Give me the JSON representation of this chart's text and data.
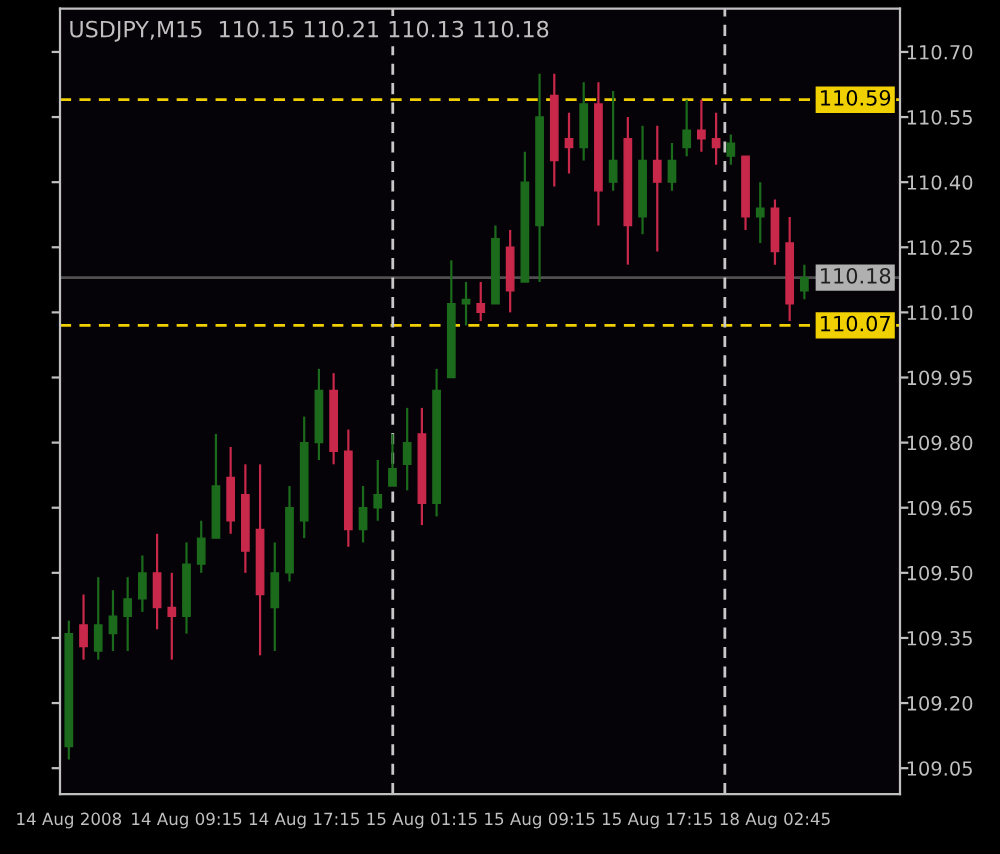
{
  "chart_data": {
    "type": "candlestick",
    "title": "USDJPY,M15  110.15 110.21 110.13 110.18",
    "categories": [
      "14 Aug 2008",
      null,
      null,
      null,
      null,
      null,
      null,
      null,
      "14 Aug 09:15",
      null,
      null,
      null,
      null,
      null,
      null,
      null,
      "14 Aug 17:15",
      null,
      null,
      null,
      null,
      null,
      null,
      null,
      "15 Aug 01:15",
      null,
      null,
      null,
      null,
      null,
      null,
      null,
      "15 Aug 09:15",
      null,
      null,
      null,
      null,
      null,
      null,
      null,
      "15 Aug 17:15",
      null,
      null,
      null,
      null,
      null,
      null,
      null,
      "18 Aug 02:45",
      null,
      null
    ],
    "ohlc": [
      [
        109.1,
        109.39,
        109.07,
        109.36
      ],
      [
        109.38,
        109.45,
        109.3,
        109.33
      ],
      [
        109.32,
        109.49,
        109.3,
        109.38
      ],
      [
        109.36,
        109.46,
        109.32,
        109.4
      ],
      [
        109.4,
        109.49,
        109.32,
        109.44
      ],
      [
        109.44,
        109.54,
        109.41,
        109.5
      ],
      [
        109.5,
        109.59,
        109.37,
        109.42
      ],
      [
        109.42,
        109.5,
        109.3,
        109.4
      ],
      [
        109.4,
        109.57,
        109.36,
        109.52
      ],
      [
        109.52,
        109.62,
        109.5,
        109.58
      ],
      [
        109.58,
        109.82,
        109.58,
        109.7
      ],
      [
        109.72,
        109.79,
        109.59,
        109.62
      ],
      [
        109.68,
        109.75,
        109.5,
        109.55
      ],
      [
        109.6,
        109.75,
        109.31,
        109.45
      ],
      [
        109.42,
        109.57,
        109.32,
        109.5
      ],
      [
        109.5,
        109.7,
        109.48,
        109.65
      ],
      [
        109.62,
        109.86,
        109.58,
        109.8
      ],
      [
        109.8,
        109.97,
        109.76,
        109.92
      ],
      [
        109.92,
        109.96,
        109.75,
        109.78
      ],
      [
        109.78,
        109.83,
        109.56,
        109.6
      ],
      [
        109.6,
        109.7,
        109.57,
        109.65
      ],
      [
        109.65,
        109.76,
        109.62,
        109.68
      ],
      [
        109.7,
        109.82,
        109.7,
        109.74
      ],
      [
        109.75,
        109.88,
        109.69,
        109.8
      ],
      [
        109.82,
        109.88,
        109.61,
        109.66
      ],
      [
        109.66,
        109.97,
        109.63,
        109.92
      ],
      [
        109.95,
        110.22,
        109.95,
        110.12
      ],
      [
        110.12,
        110.17,
        110.07,
        110.13
      ],
      [
        110.12,
        110.17,
        110.08,
        110.1
      ],
      [
        110.12,
        110.3,
        110.12,
        110.27
      ],
      [
        110.25,
        110.29,
        110.1,
        110.15
      ],
      [
        110.17,
        110.47,
        110.17,
        110.4
      ],
      [
        110.3,
        110.65,
        110.17,
        110.55
      ],
      [
        110.6,
        110.65,
        110.39,
        110.45
      ],
      [
        110.5,
        110.56,
        110.42,
        110.48
      ],
      [
        110.48,
        110.63,
        110.45,
        110.58
      ],
      [
        110.58,
        110.63,
        110.3,
        110.38
      ],
      [
        110.4,
        110.61,
        110.38,
        110.45
      ],
      [
        110.5,
        110.55,
        110.21,
        110.3
      ],
      [
        110.32,
        110.53,
        110.28,
        110.45
      ],
      [
        110.45,
        110.53,
        110.24,
        110.4
      ],
      [
        110.4,
        110.49,
        110.38,
        110.45
      ],
      [
        110.48,
        110.59,
        110.46,
        110.52
      ],
      [
        110.52,
        110.59,
        110.47,
        110.5
      ],
      [
        110.5,
        110.56,
        110.44,
        110.48
      ],
      [
        110.46,
        110.51,
        110.44,
        110.49
      ],
      [
        110.46,
        110.46,
        110.29,
        110.32
      ],
      [
        110.32,
        110.4,
        110.26,
        110.34
      ],
      [
        110.34,
        110.36,
        110.21,
        110.24
      ],
      [
        110.26,
        110.32,
        110.08,
        110.12
      ],
      [
        110.15,
        110.21,
        110.13,
        110.18
      ]
    ],
    "colors": [
      "#1c6b1c",
      "#c8284a",
      "#1c6b1c",
      "#1c6b1c",
      "#1c6b1c",
      "#1c6b1c",
      "#c8284a",
      "#c8284a",
      "#1c6b1c",
      "#1c6b1c",
      "#1c6b1c",
      "#c8284a",
      "#c8284a",
      "#c8284a",
      "#1c6b1c",
      "#1c6b1c",
      "#1c6b1c",
      "#1c6b1c",
      "#c8284a",
      "#c8284a",
      "#1c6b1c",
      "#1c6b1c",
      "#1c6b1c",
      "#1c6b1c",
      "#c8284a",
      "#1c6b1c",
      "#1c6b1c",
      "#1c6b1c",
      "#c8284a",
      "#1c6b1c",
      "#c8284a",
      "#1c6b1c",
      "#1c6b1c",
      "#c8284a",
      "#c8284a",
      "#1c6b1c",
      "#c8284a",
      "#1c6b1c",
      "#c8284a",
      "#1c6b1c",
      "#c8284a",
      "#1c6b1c",
      "#1c6b1c",
      "#c8284a",
      "#c8284a",
      "#1c6b1c",
      "#c8284a",
      "#1c6b1c",
      "#c8284a",
      "#c8284a",
      "#1c6b1c"
    ],
    "ylim": [
      108.99,
      110.8
    ],
    "yticks": [
      {
        "value": 109.05,
        "label": "109.05"
      },
      {
        "value": 109.2,
        "label": "109.20"
      },
      {
        "value": 109.35,
        "label": "109.35"
      },
      {
        "value": 109.5,
        "label": "109.50"
      },
      {
        "value": 109.65,
        "label": "109.65"
      },
      {
        "value": 109.8,
        "label": "109.80"
      },
      {
        "value": 109.95,
        "label": "109.95"
      },
      {
        "value": 110.1,
        "label": "110.10"
      },
      {
        "value": 110.25,
        "label": "110.25"
      },
      {
        "value": 110.4,
        "label": "110.40"
      },
      {
        "value": 110.55,
        "label": "110.55"
      },
      {
        "value": 110.7,
        "label": "110.70"
      }
    ],
    "ref_lines": [
      {
        "axis": "y",
        "value": 110.59,
        "label": "110.59",
        "color": "#f0d000",
        "line_style": "dashed"
      },
      {
        "axis": "y",
        "value": 110.07,
        "label": "110.07",
        "color": "#f0d000",
        "line_style": "dashed"
      },
      {
        "axis": "y",
        "value": 110.18,
        "label": "110.18",
        "color": "#505050",
        "line_style": "solid"
      }
    ]
  }
}
